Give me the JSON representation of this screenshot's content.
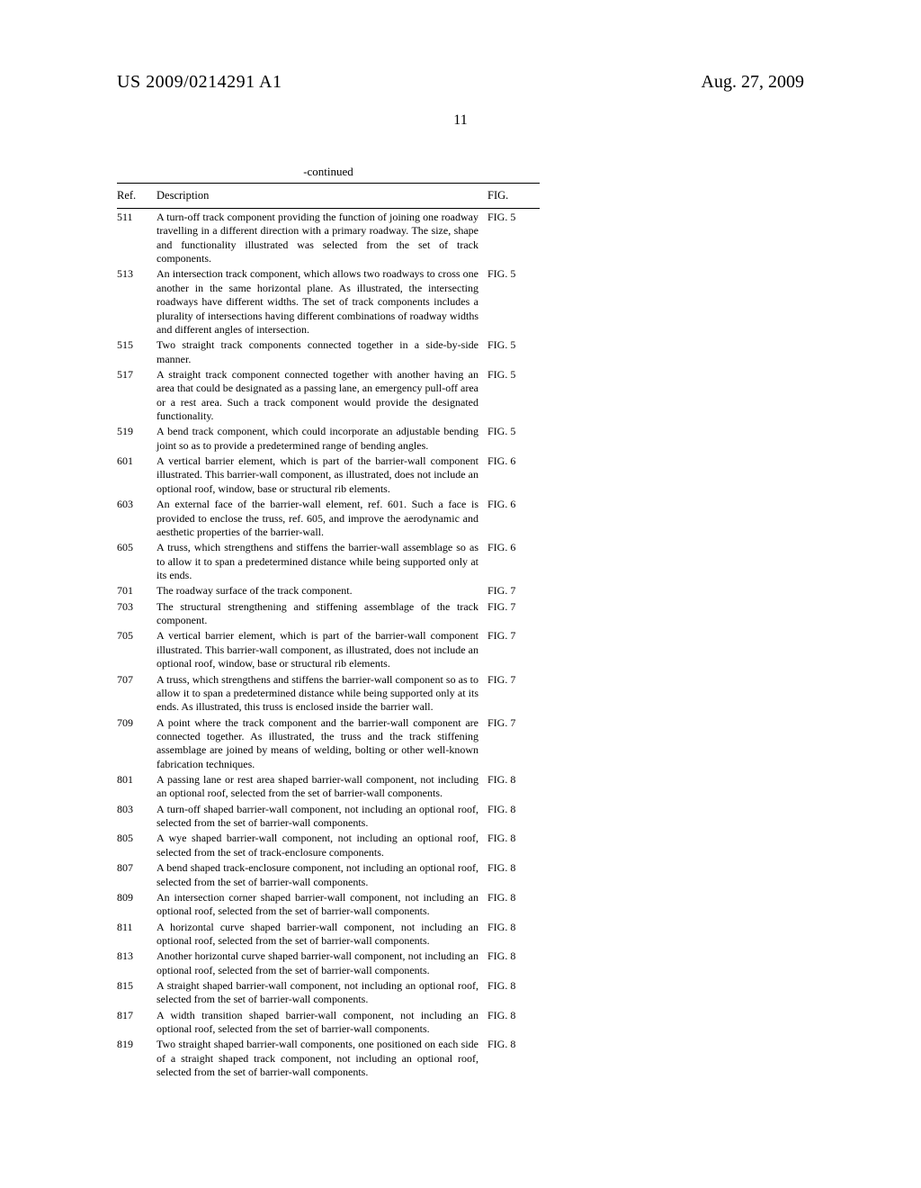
{
  "header": {
    "left": "US 2009/0214291 A1",
    "right": "Aug. 27, 2009"
  },
  "page_number": "11",
  "table": {
    "continued_label": "-continued",
    "columns": {
      "ref": "Ref.",
      "desc": "Description",
      "fig": "FIG."
    },
    "rows": [
      {
        "ref": "511",
        "fig": "FIG. 5",
        "desc": "A turn-off track component providing the function of joining one roadway travelling in a different direction with a primary roadway. The size, shape and functionality illustrated was selected from the set of track components."
      },
      {
        "ref": "513",
        "fig": "FIG. 5",
        "desc": "An intersection track component, which allows two roadways to cross one another in the same horizontal plane. As illustrated, the intersecting roadways have different widths. The set of track components includes a plurality of intersections having different combinations of roadway widths and different angles of intersection."
      },
      {
        "ref": "515",
        "fig": "FIG. 5",
        "desc": "Two straight track components connected together in a side-by-side manner."
      },
      {
        "ref": "517",
        "fig": "FIG. 5",
        "desc": "A straight track component connected together with another having an area that could be designated as a passing lane, an emergency pull-off area or a rest area. Such a track component would provide the designated functionality."
      },
      {
        "ref": "519",
        "fig": "FIG. 5",
        "desc": "A bend track component, which could incorporate an adjustable bending joint so as to provide a predetermined range of bending angles."
      },
      {
        "ref": "601",
        "fig": "FIG. 6",
        "desc": "A vertical barrier element, which is part of the barrier-wall component illustrated. This barrier-wall component, as illustrated, does not include an optional roof, window, base or structural rib elements."
      },
      {
        "ref": "603",
        "fig": "FIG. 6",
        "desc": "An external face of the barrier-wall element, ref. 601. Such a face is provided to enclose the truss, ref. 605, and improve the aerodynamic and aesthetic properties of the barrier-wall."
      },
      {
        "ref": "605",
        "fig": "FIG. 6",
        "desc": "A truss, which strengthens and stiffens the barrier-wall assemblage so as to allow it to span a predetermined distance while being supported only at its ends."
      },
      {
        "ref": "701",
        "fig": "FIG. 7",
        "desc": "The roadway surface of the track component."
      },
      {
        "ref": "703",
        "fig": "FIG. 7",
        "desc": "The structural strengthening and stiffening assemblage of the track component."
      },
      {
        "ref": "705",
        "fig": "FIG. 7",
        "desc": "A vertical barrier element, which is part of the barrier-wall component illustrated. This barrier-wall component, as illustrated, does not include an optional roof, window, base or structural rib elements."
      },
      {
        "ref": "707",
        "fig": "FIG. 7",
        "desc": "A truss, which strengthens and stiffens the barrier-wall component so as to allow it to span a predetermined distance while being supported only at its ends. As illustrated, this truss is enclosed inside the barrier wall."
      },
      {
        "ref": "709",
        "fig": "FIG. 7",
        "desc": "A point where the track component and the barrier-wall component are connected together. As illustrated, the truss and the track stiffening assemblage are joined by means of welding, bolting or other well-known fabrication techniques."
      },
      {
        "ref": "801",
        "fig": "FIG. 8",
        "desc": "A passing lane or rest area shaped barrier-wall component, not including an optional roof, selected from the set of barrier-wall components."
      },
      {
        "ref": "803",
        "fig": "FIG. 8",
        "desc": "A turn-off shaped barrier-wall component, not including an optional roof, selected from the set of barrier-wall components."
      },
      {
        "ref": "805",
        "fig": "FIG. 8",
        "desc": "A wye shaped barrier-wall component, not including an optional roof, selected from the set of track-enclosure components."
      },
      {
        "ref": "807",
        "fig": "FIG. 8",
        "desc": "A bend shaped track-enclosure component, not including an optional roof, selected from the set of barrier-wall components."
      },
      {
        "ref": "809",
        "fig": "FIG. 8",
        "desc": "An intersection corner shaped barrier-wall component, not including an optional roof, selected from the set of barrier-wall components."
      },
      {
        "ref": "811",
        "fig": "FIG. 8",
        "desc": "A horizontal curve shaped barrier-wall component, not including an optional roof, selected from the set of barrier-wall components."
      },
      {
        "ref": "813",
        "fig": "FIG. 8",
        "desc": "Another horizontal curve shaped barrier-wall component, not including an optional roof, selected from the set of barrier-wall components."
      },
      {
        "ref": "815",
        "fig": "FIG. 8",
        "desc": "A straight shaped barrier-wall component, not including an optional roof, selected from the set of barrier-wall components."
      },
      {
        "ref": "817",
        "fig": "FIG. 8",
        "desc": "A width transition shaped barrier-wall component, not including an optional roof, selected from the set of barrier-wall components."
      },
      {
        "ref": "819",
        "fig": "FIG. 8",
        "desc": "Two straight shaped barrier-wall components, one positioned on each side of a straight shaped track component, not including an optional roof, selected from the set of barrier-wall components."
      }
    ]
  }
}
